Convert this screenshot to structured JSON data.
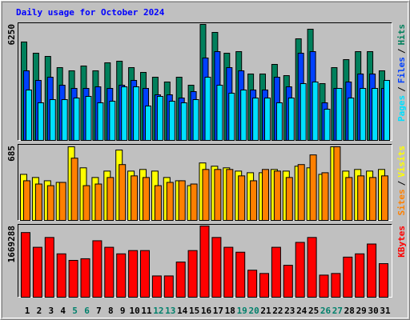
{
  "chart_data": {
    "type": "bar",
    "title": "Daily usage for October 2024",
    "title_color": "#0000ff",
    "legend_separator": "/",
    "categories": [
      "1",
      "2",
      "3",
      "4",
      "5",
      "6",
      "7",
      "8",
      "9",
      "10",
      "11",
      "12",
      "13",
      "14",
      "15",
      "16",
      "17",
      "18",
      "19",
      "20",
      "21",
      "22",
      "23",
      "24",
      "25",
      "26",
      "27",
      "28",
      "29",
      "30",
      "31"
    ],
    "label_colors": [
      "#000000",
      "#000000",
      "#000000",
      "#000000",
      "#00806b",
      "#00806b",
      "#000000",
      "#000000",
      "#000000",
      "#000000",
      "#000000",
      "#00806b",
      "#00806b",
      "#000000",
      "#000000",
      "#000000",
      "#000000",
      "#000000",
      "#00806b",
      "#00806b",
      "#000000",
      "#000000",
      "#000000",
      "#000000",
      "#000000",
      "#00806b",
      "#00806b",
      "#000000",
      "#000000",
      "#000000",
      "#000000"
    ],
    "panels": [
      {
        "ylim": [
          0,
          6250
        ],
        "yticks": [
          6250
        ],
        "series": [
          {
            "name": "Pages",
            "color": "#00e0ff",
            "values": [
              2716,
              2026,
              2198,
              2198,
              2284,
              2371,
              2026,
              2112,
              2888,
              2888,
              1853,
              2371,
              2112,
              2026,
              2198,
              3405,
              2974,
              2543,
              2716,
              2284,
              2284,
              2026,
              2284,
              3060,
              3147,
              1681,
              2802,
              2284,
              2802,
              2802,
              3233
            ]
          },
          {
            "name": "Files",
            "color": "#0040ff",
            "values": [
              3750,
              3233,
              3405,
              2974,
              2802,
              2802,
              2888,
              2802,
              2974,
              3233,
              2802,
              2457,
              2457,
              2284,
              2629,
              4440,
              4784,
              3922,
              3750,
              2716,
              2716,
              3405,
              2888,
              4698,
              4784,
              2026,
              2802,
              3147,
              3578,
              3578,
              2802
            ]
          },
          {
            "name": "Hits",
            "color": "#00805c",
            "values": [
              5302,
              4698,
              4526,
              3922,
              3750,
              4009,
              3750,
              4181,
              4267,
              3922,
              3664,
              3405,
              3147,
              3405,
              2974,
              6250,
              5819,
              4698,
              4784,
              3578,
              3578,
              4095,
              3491,
              5474,
              5991,
              3060,
              3922,
              4353,
              4784,
              4784,
              3750
            ]
          }
        ]
      },
      {
        "ylim": [
          0,
          685
        ],
        "yticks": [
          685
        ],
        "series": [
          {
            "name": "Sites",
            "color": "#ff8000",
            "values": [
              365,
              335,
              320,
              350,
              573,
              320,
              335,
              395,
              514,
              410,
              395,
              320,
              350,
              365,
              335,
              469,
              469,
              469,
              410,
              365,
              469,
              454,
              395,
              514,
              603,
              439,
              678,
              395,
              410,
              395,
              410
            ]
          },
          {
            "name": "Visits",
            "color": "#ffff00",
            "values": [
              424,
              395,
              365,
              350,
              678,
              484,
              395,
              454,
              648,
              454,
              469,
              454,
              395,
              365,
              320,
              529,
              499,
              484,
              454,
              439,
              439,
              469,
              454,
              499,
              484,
              424,
              678,
              454,
              469,
              454,
              469
            ]
          }
        ]
      },
      {
        "ylim": [
          0,
          1669288
        ],
        "yticks": [
          1669288
        ],
        "series": [
          {
            "name": "KBytes",
            "color": "#ff0000",
            "values": [
              1515773,
              1170407,
              1400651,
              1016911,
              863415,
              901789,
              1323903,
              1170407,
              1016911,
              1093659,
              1093659,
              498862,
              498862,
              825041,
              1093659,
              1669288,
              1400651,
              1170407,
              1055285,
              633171,
              556423,
              1170407,
              748293,
              1285529,
              1400651,
              518049,
              556423,
              940163,
              1016911,
              1247155,
              786667
            ]
          }
        ]
      }
    ]
  }
}
